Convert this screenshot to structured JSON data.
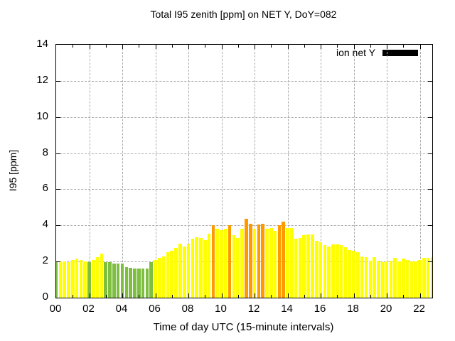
{
  "title": "Total I95 zenith [ppm] on NET Y, DoY=082",
  "legend": {
    "label": "ion net Y",
    "swatch_color": "#000000"
  },
  "axes": {
    "ylabel": "I95 [ppm]",
    "xlabel": "Time of day UTC (15-minute intervals)",
    "y_ticks": [
      0,
      2,
      4,
      6,
      8,
      10,
      12,
      14
    ],
    "y_range": [
      0,
      14
    ],
    "x_tick_labels": [
      "00",
      "02",
      "04",
      "06",
      "08",
      "10",
      "12",
      "14",
      "16",
      "18",
      "20",
      "22"
    ],
    "x_tick_hours": [
      0,
      2,
      4,
      6,
      8,
      10,
      12,
      14,
      16,
      18,
      20,
      22
    ],
    "x_range_hours": [
      0,
      22.75
    ],
    "grid": "dashed gray, every 2 ppm and every 2 hours"
  },
  "chart_data": {
    "type": "bar",
    "title": "Total I95 zenith [ppm] on NET Y, DoY=082",
    "series_name": "ion net Y",
    "xlabel": "Time of day UTC (15-minute intervals)",
    "ylabel": "I95 [ppm]",
    "ylim": [
      0,
      14
    ],
    "interval_minutes": 15,
    "palette": {
      "Y": "#ffff00",
      "G": "#7ebf42",
      "O": "#ff9900"
    },
    "times": [
      "00:00",
      "00:15",
      "00:30",
      "00:45",
      "01:00",
      "01:15",
      "01:30",
      "01:45",
      "02:00",
      "02:15",
      "02:30",
      "02:45",
      "03:00",
      "03:15",
      "03:30",
      "03:45",
      "04:00",
      "04:15",
      "04:30",
      "04:45",
      "05:00",
      "05:15",
      "05:30",
      "05:45",
      "06:00",
      "06:15",
      "06:30",
      "06:45",
      "07:00",
      "07:15",
      "07:30",
      "07:45",
      "08:00",
      "08:15",
      "08:30",
      "08:45",
      "09:00",
      "09:15",
      "09:30",
      "09:45",
      "10:00",
      "10:15",
      "10:30",
      "10:45",
      "11:00",
      "11:15",
      "11:30",
      "11:45",
      "12:00",
      "12:15",
      "12:30",
      "12:45",
      "13:00",
      "13:15",
      "13:30",
      "13:45",
      "14:00",
      "14:15",
      "14:30",
      "14:45",
      "15:00",
      "15:15",
      "15:30",
      "15:45",
      "16:00",
      "16:15",
      "16:30",
      "16:45",
      "17:00",
      "17:15",
      "17:30",
      "17:45",
      "18:00",
      "18:15",
      "18:30",
      "18:45",
      "19:00",
      "19:15",
      "19:30",
      "19:45",
      "20:00",
      "20:15",
      "20:30",
      "20:45",
      "21:00",
      "21:15",
      "21:30",
      "21:45",
      "22:00",
      "22:15",
      "22:30",
      "22:45"
    ],
    "values": [
      1.95,
      2.0,
      2.0,
      1.95,
      2.1,
      2.15,
      2.1,
      2.0,
      1.95,
      2.1,
      2.25,
      2.45,
      1.95,
      1.95,
      1.9,
      1.9,
      1.9,
      1.7,
      1.65,
      1.6,
      1.6,
      1.6,
      1.6,
      1.95,
      2.1,
      2.2,
      2.3,
      2.5,
      2.6,
      2.75,
      3.0,
      2.85,
      3.0,
      3.25,
      3.35,
      3.3,
      3.2,
      3.55,
      4.0,
      3.8,
      3.75,
      3.8,
      4.0,
      3.45,
      3.3,
      3.8,
      4.35,
      4.1,
      3.8,
      4.05,
      4.1,
      3.8,
      3.85,
      3.7,
      4.0,
      4.2,
      3.85,
      3.85,
      3.25,
      3.3,
      3.45,
      3.5,
      3.5,
      3.15,
      3.05,
      2.9,
      2.85,
      2.95,
      2.95,
      2.9,
      2.8,
      2.65,
      2.6,
      2.5,
      2.3,
      2.25,
      2.05,
      2.25,
      2.05,
      1.95,
      2.0,
      2.05,
      2.2,
      2.0,
      2.15,
      2.1,
      2.0,
      2.0,
      2.1,
      2.2,
      2.2,
      2.25
    ],
    "colors": [
      "G",
      "Y",
      "Y",
      "Y",
      "Y",
      "Y",
      "Y",
      "Y",
      "G",
      "Y",
      "Y",
      "Y",
      "G",
      "G",
      "G",
      "G",
      "G",
      "G",
      "G",
      "G",
      "G",
      "G",
      "G",
      "G",
      "Y",
      "Y",
      "Y",
      "Y",
      "Y",
      "Y",
      "Y",
      "Y",
      "Y",
      "Y",
      "Y",
      "Y",
      "Y",
      "Y",
      "O",
      "Y",
      "Y",
      "Y",
      "O",
      "Y",
      "Y",
      "Y",
      "O",
      "O",
      "Y",
      "O",
      "O",
      "Y",
      "Y",
      "Y",
      "O",
      "O",
      "Y",
      "Y",
      "Y",
      "Y",
      "Y",
      "Y",
      "Y",
      "Y",
      "Y",
      "Y",
      "Y",
      "Y",
      "Y",
      "Y",
      "Y",
      "Y",
      "Y",
      "Y",
      "Y",
      "Y",
      "Y",
      "Y",
      "Y",
      "Y",
      "Y",
      "Y",
      "Y",
      "Y",
      "Y",
      "Y",
      "Y",
      "Y",
      "Y",
      "Y",
      "Y",
      "Y"
    ]
  }
}
